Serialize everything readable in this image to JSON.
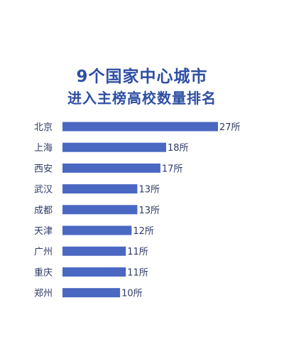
{
  "title": {
    "line1": "9个国家中心城市",
    "line2": "进入主榜高校数量排名"
  },
  "colors": {
    "bar": "#4a68c2",
    "title": "#2f4fa3",
    "label": "#2f3a66"
  },
  "chart_data": {
    "type": "bar",
    "orientation": "horizontal",
    "title": "9个国家中心城市进入主榜高校数量排名",
    "categories": [
      "北京",
      "上海",
      "西安",
      "武汉",
      "成都",
      "天津",
      "广州",
      "重庆",
      "郑州"
    ],
    "values": [
      27,
      18,
      17,
      13,
      13,
      12,
      11,
      11,
      10
    ],
    "value_labels": [
      "27所",
      "18所",
      "17所",
      "13所",
      "13所",
      "12所",
      "11所",
      "11所",
      "10所"
    ],
    "unit": "所",
    "xlim": [
      0,
      27
    ],
    "grid": false,
    "legend": "none"
  }
}
